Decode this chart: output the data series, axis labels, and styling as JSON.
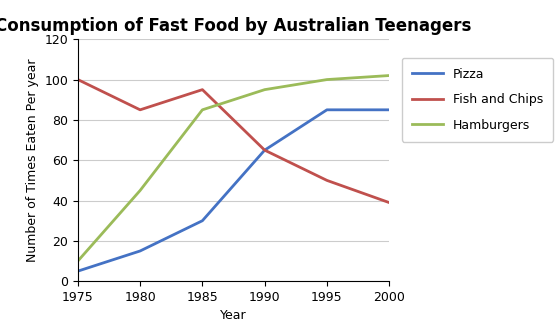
{
  "title": "Consumption of Fast Food by Australian Teenagers",
  "xlabel": "Year",
  "ylabel": "Number of Times Eaten Per year",
  "years": [
    1975,
    1980,
    1985,
    1990,
    1995,
    2000
  ],
  "pizza": [
    5,
    15,
    30,
    65,
    85,
    85
  ],
  "fish_and_chips": [
    100,
    85,
    95,
    65,
    50,
    39
  ],
  "hamburgers": [
    10,
    45,
    85,
    95,
    100,
    102
  ],
  "pizza_color": "#4472C4",
  "fish_chips_color": "#C0504D",
  "hamburgers_color": "#9BBB59",
  "ylim": [
    0,
    120
  ],
  "yticks": [
    0,
    20,
    40,
    60,
    80,
    100,
    120
  ],
  "xticks": [
    1975,
    1980,
    1985,
    1990,
    1995,
    2000
  ],
  "legend_labels": [
    "Pizza",
    "Fish and Chips",
    "Hamburgers"
  ],
  "line_width": 2.0,
  "title_fontsize": 12,
  "axis_label_fontsize": 9,
  "tick_fontsize": 9,
  "legend_fontsize": 9,
  "bg_color": "#FFFFFF",
  "grid_color": "#AAAAAA",
  "grid_alpha": 0.6
}
